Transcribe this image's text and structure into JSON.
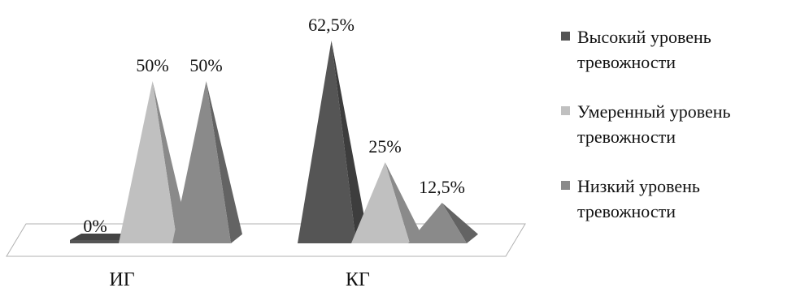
{
  "chart_data": {
    "type": "bar",
    "style": "3d-pyramid",
    "categories": [
      "ИГ",
      "КГ"
    ],
    "series": [
      {
        "name": "Высокий уровень тревожности",
        "values": [
          0,
          62.5
        ],
        "color": "#555555"
      },
      {
        "name": "Умеренный уровень тревожности",
        "values": [
          50,
          25
        ],
        "color": "#c0c0c0"
      },
      {
        "name": "Низкий уровень тревожности",
        "values": [
          50,
          12.5
        ],
        "color": "#8a8a8a"
      }
    ],
    "data_labels": [
      [
        "0%",
        "62,5%"
      ],
      [
        "50%",
        "25%"
      ],
      [
        "50%",
        "12,5%"
      ]
    ],
    "ylim": [
      0,
      62.5
    ],
    "legend_position": "right",
    "grid": false
  }
}
